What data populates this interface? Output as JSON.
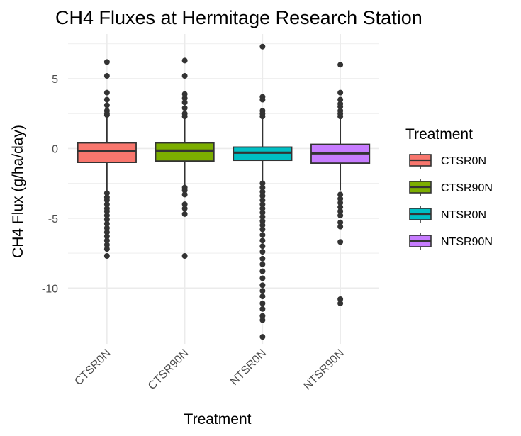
{
  "chart_data": {
    "type": "box",
    "title": "CH4 Fluxes at Hermitage Research Station",
    "xlabel": "Treatment",
    "ylabel": "CH4 Flux (g/ha/day)",
    "ylim": [
      -14,
      8.2
    ],
    "yticks": [
      5,
      0,
      -5,
      -10
    ],
    "grid": true,
    "legend": {
      "title": "Treatment",
      "position": "right"
    },
    "categories": [
      "CTSR0N",
      "CTSR90N",
      "NTSR0N",
      "NTSR90N"
    ],
    "series": [
      {
        "name": "CTSR0N",
        "color": "#F8766D",
        "q1": -1.0,
        "median": -0.2,
        "q3": 0.4,
        "whisker_low": -3.0,
        "whisker_high": 2.2,
        "outliers": [
          6.2,
          5.2,
          4.0,
          3.5,
          3.1,
          2.7,
          2.5,
          2.4,
          -3.2,
          -3.5,
          -3.7,
          -4.0,
          -4.3,
          -4.5,
          -4.8,
          -5.1,
          -5.4,
          -5.7,
          -6.0,
          -6.3,
          -6.6,
          -6.9,
          -7.2,
          -7.7
        ]
      },
      {
        "name": "CTSR90N",
        "color": "#7CAE00",
        "q1": -0.9,
        "median": -0.15,
        "q3": 0.4,
        "whisker_low": -2.8,
        "whisker_high": 2.2,
        "outliers": [
          6.3,
          5.2,
          3.9,
          3.6,
          3.3,
          2.9,
          2.5,
          2.3,
          -2.8,
          -3.0,
          -3.3,
          -4.0,
          -4.3,
          -4.7,
          -7.7
        ]
      },
      {
        "name": "NTSR0N",
        "color": "#00BFC4",
        "q1": -0.85,
        "median": -0.3,
        "q3": 0.1,
        "whisker_low": -2.5,
        "whisker_high": 2.2,
        "outliers": [
          7.3,
          3.7,
          3.5,
          2.7,
          2.5,
          2.3,
          -2.5,
          -2.8,
          -3.1,
          -3.4,
          -3.7,
          -4.0,
          -4.3,
          -4.6,
          -4.9,
          -5.2,
          -5.5,
          -5.8,
          -6.2,
          -6.6,
          -7.0,
          -7.4,
          -7.9,
          -8.3,
          -8.8,
          -9.3,
          -9.8,
          -10.2,
          -10.6,
          -11.1,
          -11.5,
          -12.0,
          -12.3,
          -13.5
        ]
      },
      {
        "name": "NTSR90N",
        "color": "#C77CFF",
        "q1": -1.05,
        "median": -0.35,
        "q3": 0.3,
        "whisker_low": -3.0,
        "whisker_high": 2.2,
        "outliers": [
          6.0,
          4.0,
          3.5,
          3.2,
          3.0,
          2.7,
          2.5,
          2.3,
          -3.3,
          -3.6,
          -3.9,
          -4.2,
          -4.5,
          -4.8,
          -5.3,
          -5.6,
          -6.7,
          -10.8,
          -11.1
        ]
      }
    ]
  }
}
